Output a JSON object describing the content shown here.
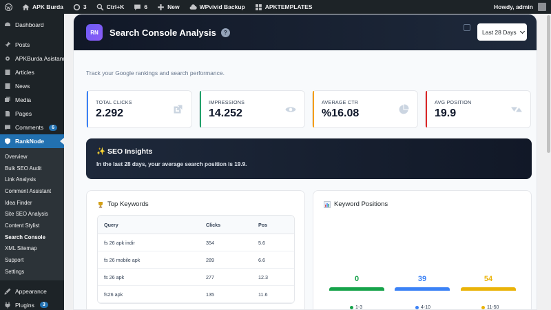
{
  "adminbar": {
    "site": "APK Burda",
    "updates": "3",
    "ctrlk": "Ctrl+K",
    "comments": "6",
    "new": "New",
    "backup": "WPvivid Backup",
    "templates": "APKTEMPLATES",
    "howdy": "Howdy, admin"
  },
  "sidebar": {
    "items": [
      {
        "label": "Dashboard",
        "icon": "dashboard-icon"
      },
      {
        "label": "Posts",
        "icon": "pin-icon"
      },
      {
        "label": "APKBurda Asistanı",
        "icon": "gear-icon"
      },
      {
        "label": "Articles",
        "icon": "document-icon"
      },
      {
        "label": "News",
        "icon": "document-icon"
      },
      {
        "label": "Media",
        "icon": "media-icon"
      },
      {
        "label": "Pages",
        "icon": "page-icon"
      },
      {
        "label": "Comments",
        "icon": "comment-icon",
        "badge": "6"
      },
      {
        "label": "RankNode",
        "icon": "shield-icon"
      }
    ],
    "submenu": [
      "Overview",
      "Bulk SEO Audit",
      "Link Analysis",
      "Comment Assistant",
      "Idea Finder",
      "Site SEO Analysis",
      "Content Stylist",
      "Search Console",
      "XML Sitemap",
      "Support",
      "Settings"
    ],
    "bottom": [
      {
        "label": "Appearance",
        "icon": "brush-icon"
      },
      {
        "label": "Plugins",
        "icon": "plugin-icon",
        "badge": "3"
      }
    ]
  },
  "header": {
    "logo": "RN",
    "title": "Search Console Analysis",
    "help": "?",
    "date_range": "Last 28 Days"
  },
  "subtitle": "Track your Google rankings and search performance.",
  "stats": [
    {
      "label": "TOTAL CLICKS",
      "value": "2.292",
      "color": "#3b82f6",
      "icon": "external-link-icon"
    },
    {
      "label": "IMPRESSIONS",
      "value": "14.252",
      "color": "#22a06b",
      "icon": "eye-icon"
    },
    {
      "label": "AVERAGE CTR",
      "value": "%16.08",
      "color": "#f59e0b",
      "icon": "pie-icon"
    },
    {
      "label": "AVG POSITION",
      "value": "19.9",
      "color": "#dc2626",
      "icon": "sort-icon"
    }
  ],
  "insights": {
    "title": "✨ SEO Insights",
    "text": "In the last 28 days, your average search position is 19.9."
  },
  "top_keywords": {
    "title": "Top Keywords",
    "columns": [
      "Query",
      "Clicks",
      "Pos"
    ],
    "rows": [
      {
        "query": "fs 26 apk indir",
        "clicks": "354",
        "pos": "5.6"
      },
      {
        "query": "fs 26 mobile apk",
        "clicks": "289",
        "pos": "6.6"
      },
      {
        "query": "fs 26 apk",
        "clicks": "277",
        "pos": "12.3"
      },
      {
        "query": "fs26 apk",
        "clicks": "135",
        "pos": "11.6"
      }
    ]
  },
  "keyword_positions": {
    "title": "Keyword Positions",
    "groups": [
      {
        "label": "1-3",
        "value": "0",
        "color": "#16a34a"
      },
      {
        "label": "4-10",
        "value": "39",
        "color": "#3b82f6"
      },
      {
        "label": "11-50",
        "value": "54",
        "color": "#eab308"
      }
    ]
  }
}
